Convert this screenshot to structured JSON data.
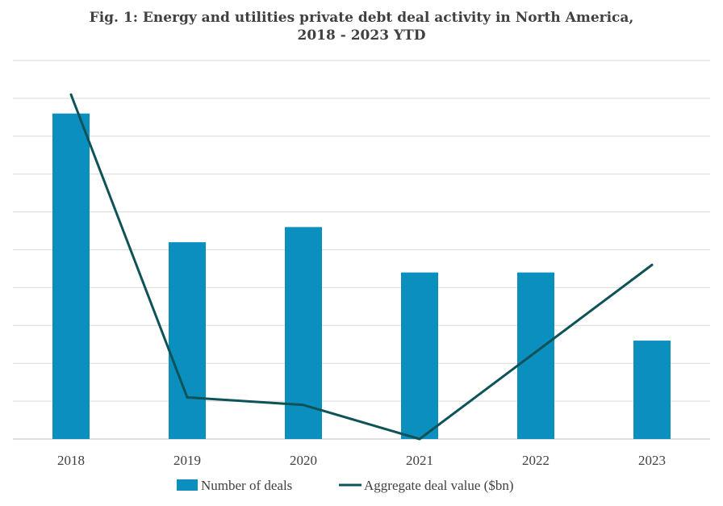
{
  "chart_data": {
    "type": "bar",
    "title_lines": [
      "Fig. 1: Energy and utilities private debt deal activity in North America,",
      "2018 - 2023 YTD"
    ],
    "categories": [
      "2018",
      "2019",
      "2020",
      "2021",
      "2022",
      "2023"
    ],
    "series": [
      {
        "name": "Number of deals",
        "type": "bar",
        "values": [
          86,
          52,
          56,
          44,
          44,
          26
        ]
      },
      {
        "name": "Aggregate deal value ($bn)",
        "type": "line",
        "values": [
          91,
          11,
          9,
          0,
          23,
          46
        ]
      }
    ],
    "ylim": [
      0,
      100
    ],
    "y_axis_labels_shown": false,
    "grid": true,
    "legend_position": "bottom",
    "colors": {
      "bar": "#0a8fbf",
      "line": "#0d5358",
      "grid": "#d9d9d9",
      "axis": "#bfbfbf",
      "text": "#404040"
    }
  }
}
